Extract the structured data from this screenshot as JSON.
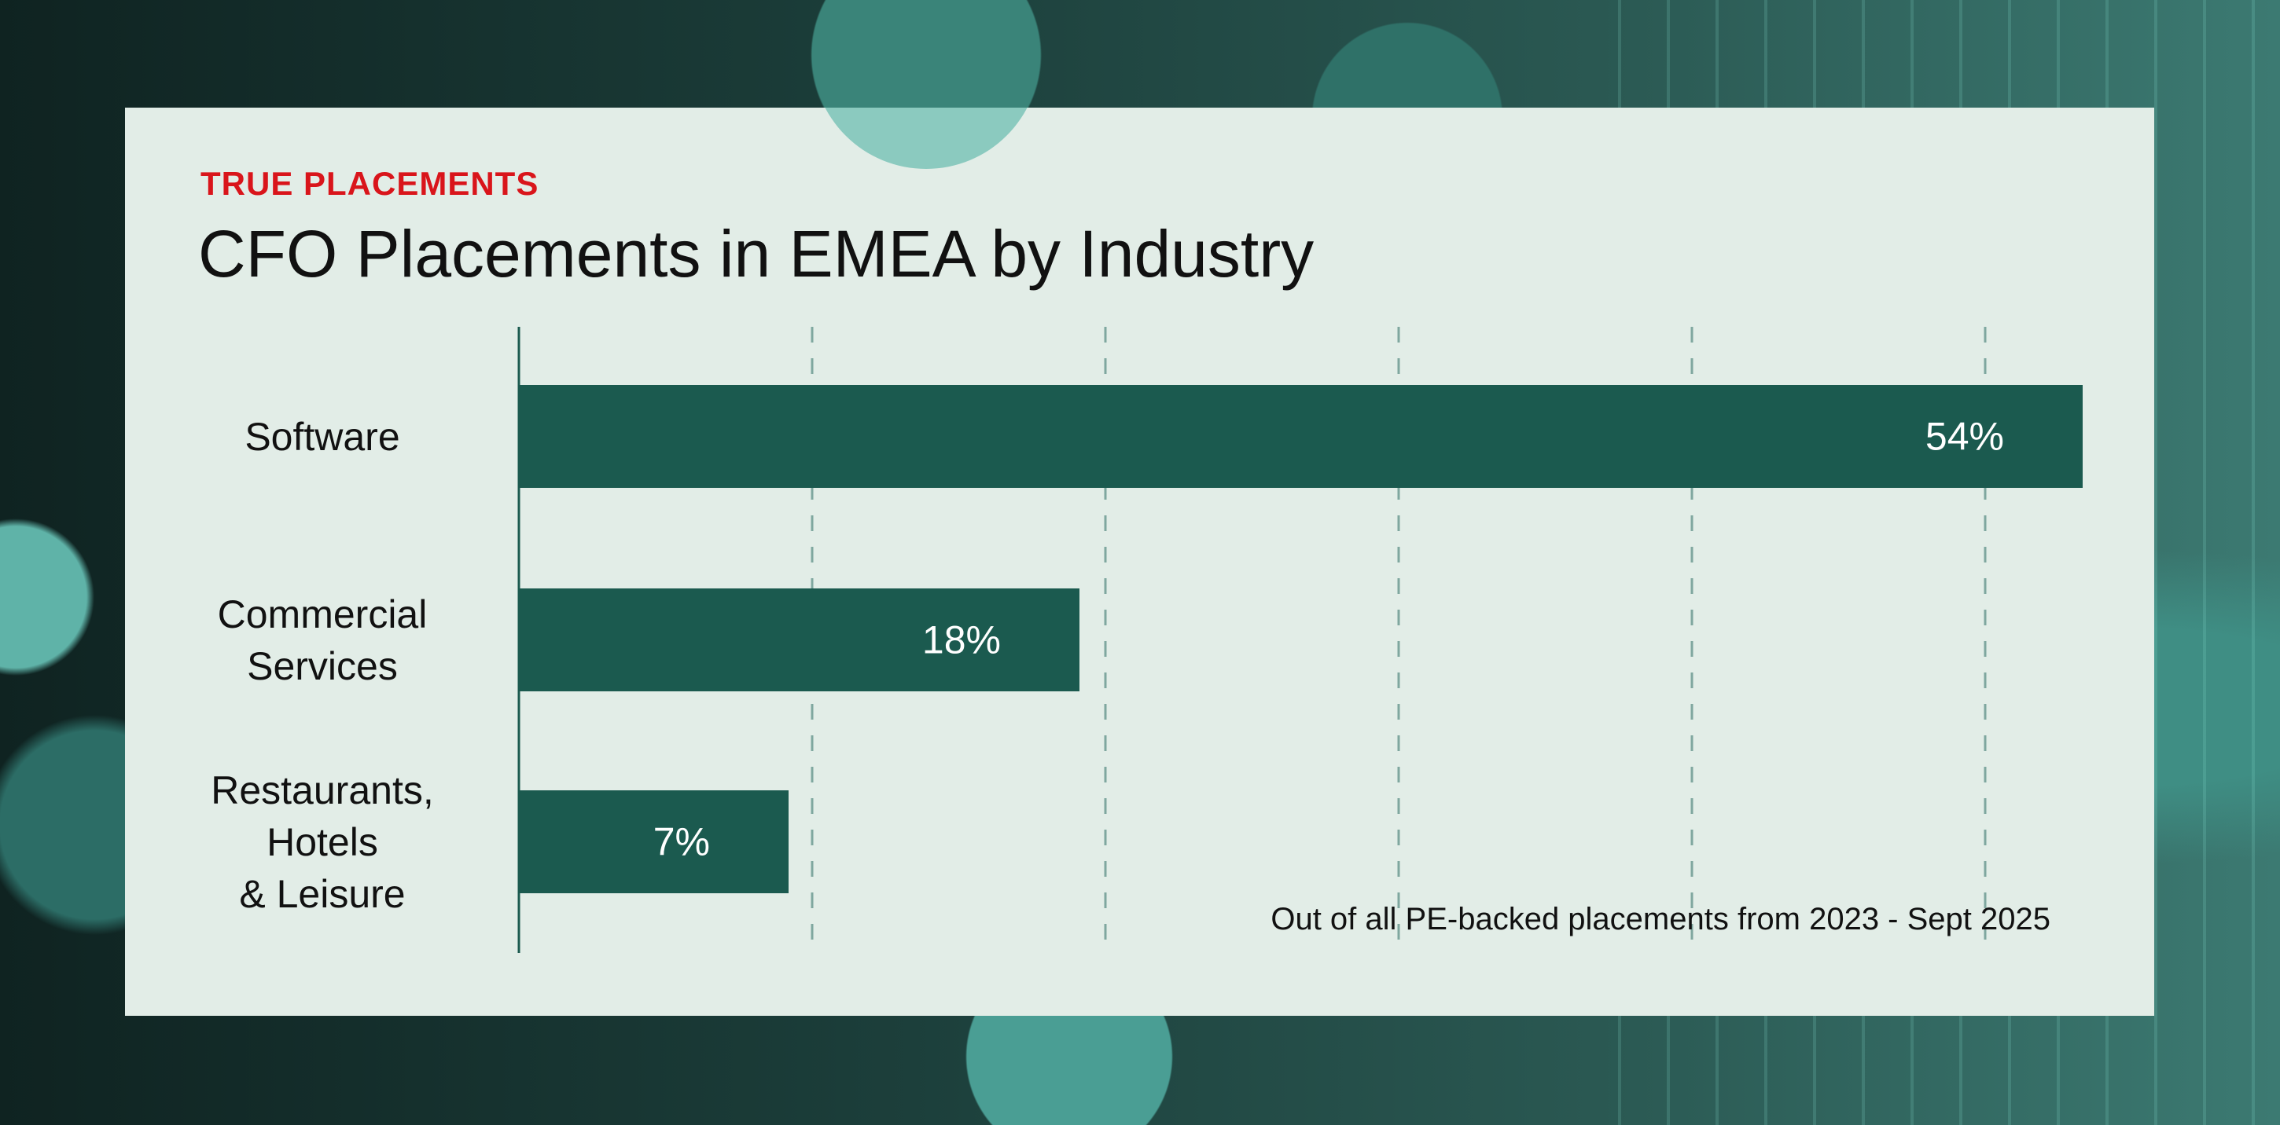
{
  "kicker": "TRUE PLACEMENTS",
  "title": "CFO Placements in EMEA by Industry",
  "footnote": "Out of all PE-backed placements from 2023 - Sept 2025",
  "colors": {
    "bar": "#1b5a4f",
    "kicker": "#d9151b",
    "grid": "#7fa79f",
    "card": "#e2ede7"
  },
  "chart_data": {
    "type": "bar",
    "orientation": "horizontal",
    "title": "CFO Placements in EMEA by Industry",
    "categories": [
      "Software",
      "Commercial Services",
      "Restaurants, Hotels & Leisure"
    ],
    "category_lines": [
      [
        "Software"
      ],
      [
        "Commercial",
        "Services"
      ],
      [
        "Restaurants,",
        "Hotels",
        "& Leisure"
      ]
    ],
    "values": [
      54,
      18,
      7
    ],
    "data_labels": [
      "54%",
      "18%",
      "7%"
    ],
    "xlim": [
      0,
      56
    ],
    "grid_step": 10,
    "grid": true
  }
}
